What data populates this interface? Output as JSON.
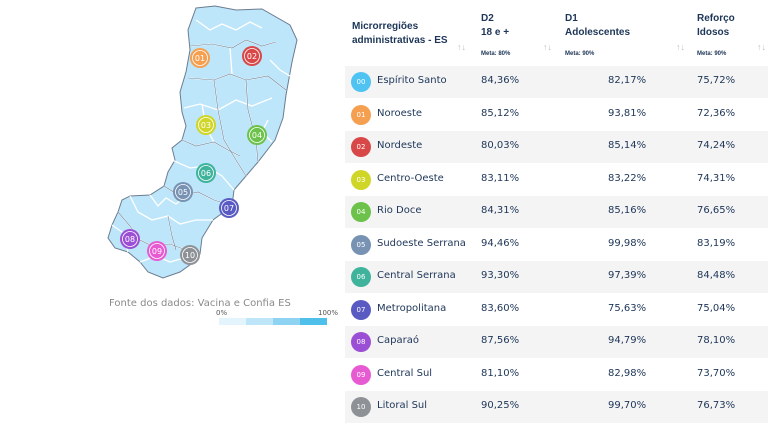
{
  "map": {
    "fill_color": "#bde6fb",
    "border_color": "#ffffff",
    "outline_color": "#6b7c8f",
    "markers": [
      {
        "code": "01",
        "color": "#f5a051"
      },
      {
        "code": "02",
        "color": "#d94848"
      },
      {
        "code": "03",
        "color": "#cfd628"
      },
      {
        "code": "04",
        "color": "#6cc24a"
      },
      {
        "code": "05",
        "color": "#7792b2"
      },
      {
        "code": "06",
        "color": "#3fb39b"
      },
      {
        "code": "07",
        "color": "#5a5bc2"
      },
      {
        "code": "08",
        "color": "#9b4fd4"
      },
      {
        "code": "09",
        "color": "#e75bd2"
      },
      {
        "code": "10",
        "color": "#8e9296"
      }
    ]
  },
  "source_note": "Fonte dos dados: Vacina e Confia ES",
  "legend": {
    "min_label": "0%",
    "max_label": "100%",
    "colors": [
      "#e3f4fc",
      "#bfe6f8",
      "#8fd3f2",
      "#4fc0ea"
    ]
  },
  "table": {
    "headers": {
      "region": [
        "Microrregiões",
        "administrativas - ES"
      ],
      "d2": {
        "lines": [
          "D2",
          "18 e +"
        ],
        "meta": "Meta: 80%"
      },
      "d1": {
        "lines": [
          "D1",
          "Adolescentes"
        ],
        "meta": "Meta: 90%"
      },
      "ref": {
        "lines": [
          "Reforço",
          "Idosos"
        ],
        "meta": "Meta: 90%"
      }
    },
    "sort_icon": "↑↓",
    "rows": [
      {
        "code": "00",
        "color": "#4fc3f2",
        "name": "Espírito Santo",
        "d2": "84,36%",
        "d1": "82,17%",
        "ref": "75,72%"
      },
      {
        "code": "01",
        "color": "#f5a051",
        "name": "Noroeste",
        "d2": "85,12%",
        "d1": "93,81%",
        "ref": "72,36%"
      },
      {
        "code": "02",
        "color": "#d94848",
        "name": "Nordeste",
        "d2": "80,03%",
        "d1": "85,14%",
        "ref": "74,24%"
      },
      {
        "code": "03",
        "color": "#cfd628",
        "name": "Centro-Oeste",
        "d2": "83,11%",
        "d1": "83,22%",
        "ref": "74,31%"
      },
      {
        "code": "04",
        "color": "#6cc24a",
        "name": "Rio Doce",
        "d2": "84,31%",
        "d1": "85,16%",
        "ref": "76,65%"
      },
      {
        "code": "05",
        "color": "#7792b2",
        "name": "Sudoeste Serrana",
        "d2": "94,46%",
        "d1": "99,98%",
        "ref": "83,19%"
      },
      {
        "code": "06",
        "color": "#3fb39b",
        "name": "Central Serrana",
        "d2": "93,30%",
        "d1": "97,39%",
        "ref": "84,48%"
      },
      {
        "code": "07",
        "color": "#5a5bc2",
        "name": "Metropolitana",
        "d2": "83,60%",
        "d1": "75,63%",
        "ref": "75,04%"
      },
      {
        "code": "08",
        "color": "#9b4fd4",
        "name": "Caparaó",
        "d2": "87,56%",
        "d1": "94,79%",
        "ref": "78,10%"
      },
      {
        "code": "09",
        "color": "#e75bd2",
        "name": "Central Sul",
        "d2": "81,10%",
        "d1": "82,98%",
        "ref": "73,70%"
      },
      {
        "code": "10",
        "color": "#8e9296",
        "name": "Litoral Sul",
        "d2": "90,25%",
        "d1": "99,70%",
        "ref": "76,73%"
      }
    ]
  }
}
